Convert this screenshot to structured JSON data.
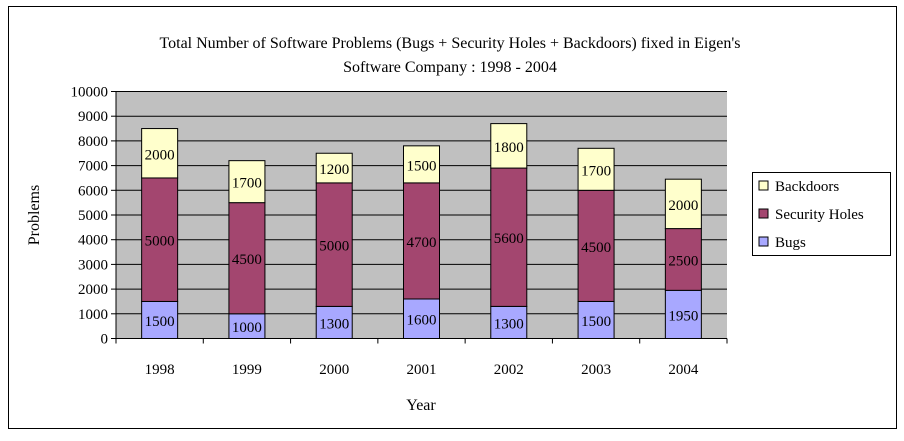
{
  "chart_data": {
    "type": "bar",
    "stacked": true,
    "title_line1": "Total Number of Software Problems (Bugs + Security Holes + Backdoors) fixed in Eigen's",
    "title_line2": "Software Company : 1998 - 2004",
    "xlabel": "Year",
    "ylabel": "Problems",
    "ylim": [
      0,
      10000
    ],
    "yticks": [
      "0",
      "1000",
      "2000",
      "3000",
      "4000",
      "5000",
      "6000",
      "7000",
      "8000",
      "9000",
      "10000"
    ],
    "categories": [
      "1998",
      "1999",
      "2000",
      "2001",
      "2002",
      "2003",
      "2004"
    ],
    "series": [
      {
        "name": "Bugs",
        "color": "#A8A8FF",
        "values": [
          1500,
          1000,
          1300,
          1600,
          1300,
          1500,
          1950
        ]
      },
      {
        "name": "Security Holes",
        "color": "#A3466F",
        "values": [
          5000,
          4500,
          5000,
          4700,
          5600,
          4500,
          2500
        ]
      },
      {
        "name": "Backdoors",
        "color": "#FFFFCC",
        "values": [
          2000,
          1700,
          1200,
          1500,
          1800,
          1700,
          2000
        ]
      }
    ],
    "legend_order": [
      "Backdoors",
      "Security Holes",
      "Bugs"
    ],
    "legend_position": "right",
    "grid": true,
    "plot_background": "#C0C0C0"
  }
}
